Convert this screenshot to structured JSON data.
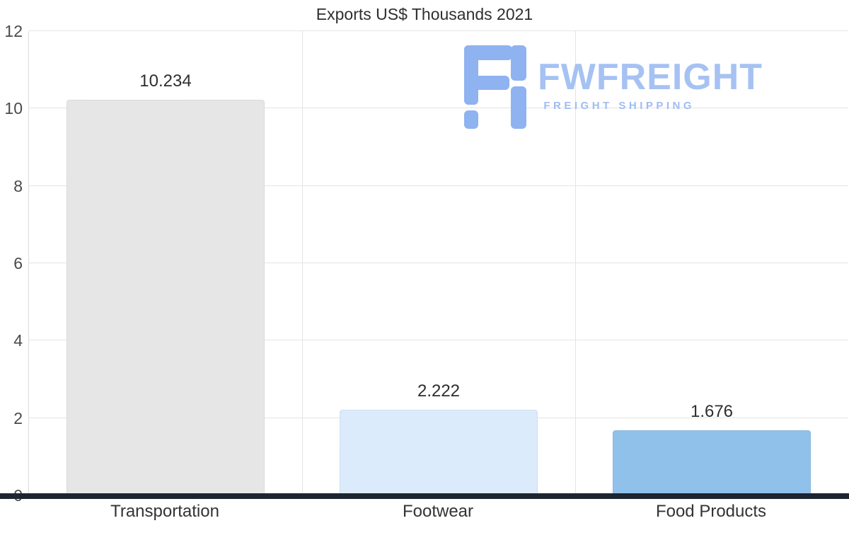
{
  "chart_data": {
    "type": "bar",
    "title": "Exports US$ Thousands 2021",
    "categories": [
      "Transportation",
      "Footwear",
      "Food Products"
    ],
    "values": [
      10.234,
      2.222,
      1.676
    ],
    "value_labels": [
      "10.234",
      "2.222",
      "1.676"
    ],
    "bar_colors": [
      "#e6e6e6",
      "#dcebfb",
      "#90c1ea"
    ],
    "ylim": [
      0,
      12
    ],
    "yticks": [
      0,
      2,
      4,
      6,
      8,
      10,
      12
    ],
    "grid": true,
    "legend_position": "none",
    "xlabel": "",
    "ylabel": "",
    "axis_line_color": "#1d2531",
    "grid_color": "#e4e4e4"
  },
  "watermark": {
    "wordmark": "FWFREIGHT",
    "tagline": "FREIGHT SHIPPING",
    "color": "#a6c2f3",
    "icon_color": "#8fb2f0"
  }
}
